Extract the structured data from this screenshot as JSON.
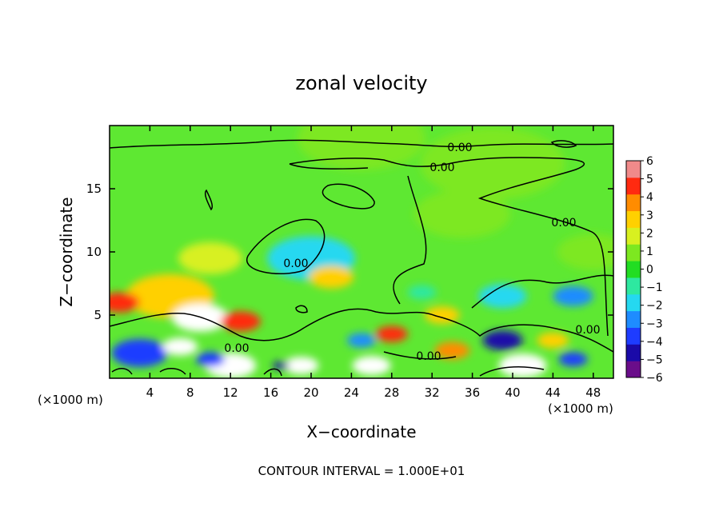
{
  "chart_data": {
    "type": "heatmap",
    "title": "zonal velocity",
    "xlabel": "X−coordinate",
    "ylabel": "Z−coordinate",
    "x_unit_left": "(×1000 m)",
    "x_unit_right": "(×1000 m)",
    "footer": "CONTOUR INTERVAL = 1.000E+01",
    "xlim": [
      0,
      50
    ],
    "ylim": [
      0,
      20
    ],
    "x_ticks": [
      4,
      8,
      12,
      16,
      20,
      24,
      28,
      32,
      36,
      40,
      44,
      48
    ],
    "y_ticks": [
      5,
      10,
      15
    ],
    "colorbar": {
      "ticks": [
        "6",
        "5",
        "4",
        "3",
        "2",
        "1",
        "0",
        "−1",
        "−2",
        "−3",
        "−4",
        "−5",
        "−6"
      ],
      "range": [
        -6,
        6
      ],
      "colors": [
        "#6a0d8a",
        "#1a0aa8",
        "#1e3cff",
        "#1e8cff",
        "#25d8f0",
        "#2ee8a0",
        "#22dd22",
        "#7de820",
        "#d8f020",
        "#ffd000",
        "#ff8c00",
        "#ff2a10",
        "#f08a8a"
      ]
    },
    "contour_labels": [
      "0.00",
      "0.00",
      "0.00",
      "0.00",
      "0.00",
      "0.00",
      "0.00"
    ],
    "field_regions": [
      {
        "x": 25,
        "z": 19,
        "value": 0.6
      },
      {
        "x": 38,
        "z": 17,
        "value": 0.8
      },
      {
        "x": 20,
        "z": 9.5,
        "value": -1.8
      },
      {
        "x": 10,
        "z": 9.5,
        "value": 2.2
      },
      {
        "x": 6,
        "z": 6.5,
        "value": 3.0
      },
      {
        "x": 1,
        "z": 6,
        "value": 4.5
      },
      {
        "x": 9,
        "z": 4.8,
        "value": 7
      },
      {
        "x": 13,
        "z": 4.5,
        "value": 5
      },
      {
        "x": 22,
        "z": 8,
        "value": 3
      },
      {
        "x": 3,
        "z": 2,
        "value": -4.5
      },
      {
        "x": 7,
        "z": 2.5,
        "value": 7
      },
      {
        "x": 12,
        "z": 1,
        "value": 7
      },
      {
        "x": 10,
        "z": 1.5,
        "value": -4
      },
      {
        "x": 19,
        "z": 1,
        "value": 7
      },
      {
        "x": 26,
        "z": 1,
        "value": 7
      },
      {
        "x": 28,
        "z": 3.5,
        "value": 5
      },
      {
        "x": 25,
        "z": 3,
        "value": -3.5
      },
      {
        "x": 34,
        "z": 2.2,
        "value": 3.5
      },
      {
        "x": 39,
        "z": 3,
        "value": -5
      },
      {
        "x": 41,
        "z": 1,
        "value": 7
      },
      {
        "x": 44,
        "z": 3,
        "value": 3
      },
      {
        "x": 46,
        "z": 1.5,
        "value": -4
      },
      {
        "x": 39,
        "z": 6.5,
        "value": -2.5
      },
      {
        "x": 46,
        "z": 6.5,
        "value": -2.8
      },
      {
        "x": 33,
        "z": 5,
        "value": 3
      },
      {
        "x": 31,
        "z": 6.8,
        "value": -1.5
      },
      {
        "x": 17,
        "z": 1,
        "value": -5
      },
      {
        "x": 48,
        "z": 10,
        "value": 1.2
      },
      {
        "x": 35,
        "z": 13,
        "value": 0.6
      }
    ]
  }
}
